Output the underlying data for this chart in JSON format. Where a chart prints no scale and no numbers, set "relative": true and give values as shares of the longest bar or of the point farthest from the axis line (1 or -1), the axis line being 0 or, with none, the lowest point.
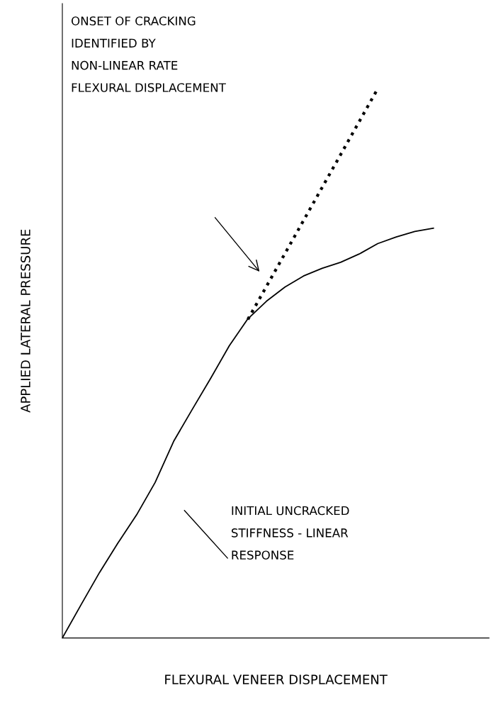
{
  "chart_data": {
    "type": "line",
    "relative": true,
    "xlabel": "FLEXURAL VENEER DISPLACEMENT",
    "ylabel": "APPLIED LATERAL PRESSURE",
    "categories": [
      null,
      null,
      null,
      null,
      null,
      null,
      null,
      null,
      null,
      null,
      null,
      null,
      null,
      null,
      null,
      null,
      null,
      null,
      null,
      null,
      null,
      null,
      null,
      null
    ],
    "series": [
      {
        "color": "#000000",
        "line_style": "solid",
        "values": [
          0,
          0.06,
          0.119,
          0.173,
          0.224,
          0.283,
          0.358,
          0.416,
          0.473,
          0.532,
          0.581,
          0.613,
          0.639,
          0.659,
          0.673,
          0.684,
          0.699,
          0.718,
          0.73,
          0.74,
          0.746,
          null,
          null,
          null
        ]
      },
      {
        "color": "#000000",
        "line_style": "dotted",
        "values": [
          null,
          null,
          null,
          null,
          null,
          null,
          null,
          null,
          null,
          null,
          0.58,
          0.64,
          0.7,
          0.76,
          0.82,
          0.88,
          0.94,
          1.0,
          null,
          null,
          null,
          null,
          null,
          null
        ]
      }
    ],
    "annotations": [
      "ONSET OF CRACKING\nIDENTIFIED BY\nNON-LINEAR RATE\nFLEXURAL DISPLACEMENT",
      "INITIAL UNCRACKED\nSTIFFNESS - LINEAR\nRESPONSE"
    ]
  }
}
